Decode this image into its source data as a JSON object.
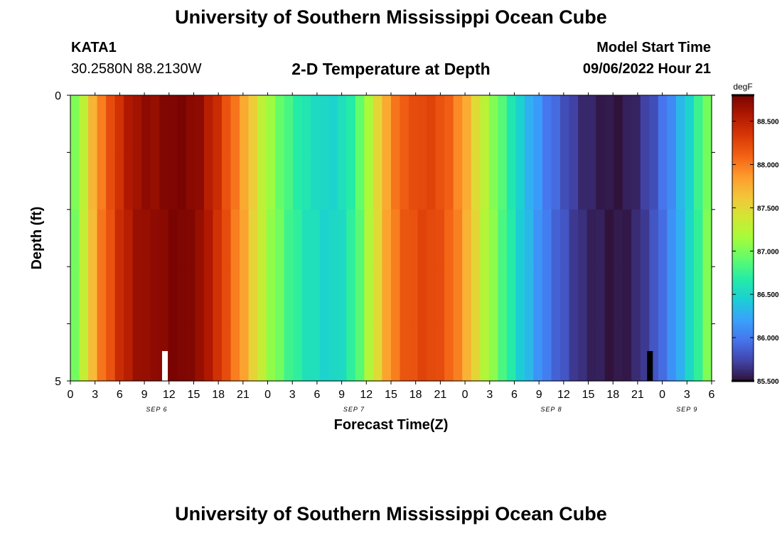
{
  "header": {
    "title": "University of Southern Mississippi Ocean Cube",
    "station_id": "KATA1",
    "station_coords": "30.2580N  88.2130W",
    "chart_title": "2-D Temperature at Depth",
    "model_start_label": "Model Start Time",
    "model_start_value": "09/06/2022 Hour 21"
  },
  "footer": {
    "title": "University of Southern Mississippi Ocean Cube"
  },
  "chart_data": {
    "type": "heatmap",
    "xlabel": "Forecast Time(Z)",
    "ylabel": "Depth (ft)",
    "x_tick_labels": [
      "0",
      "3",
      "6",
      "9",
      "12",
      "15",
      "18",
      "21",
      "0",
      "3",
      "6",
      "9",
      "12",
      "15",
      "18",
      "21",
      "0",
      "3",
      "6",
      "9",
      "12",
      "15",
      "18",
      "21",
      "0",
      "3",
      "6"
    ],
    "day_labels": [
      {
        "label": "SEP 6",
        "tick_index": 3.5
      },
      {
        "label": "SEP 7",
        "tick_index": 11.5
      },
      {
        "label": "SEP 8",
        "tick_index": 19.5
      },
      {
        "label": "SEP 9",
        "tick_index": 25
      }
    ],
    "x_range_hours": [
      0,
      78
    ],
    "y_tick_labels": [
      "0",
      "5"
    ],
    "y_range": [
      0,
      5
    ],
    "depth_bands": 5,
    "colorbar": {
      "unit": "degF",
      "range": [
        85.5,
        88.8
      ],
      "tick_labels": [
        "85.500",
        "86.000",
        "86.500",
        "87.000",
        "87.500",
        "88.000",
        "88.500"
      ],
      "tick_values": [
        85.5,
        86.0,
        86.5,
        87.0,
        87.5,
        88.0,
        88.5
      ],
      "colormap": [
        "#30123b",
        "#4145ab",
        "#4675ed",
        "#39a2fc",
        "#1bcfd4",
        "#24eca6",
        "#61fc6c",
        "#a4fc3b",
        "#d1e834",
        "#f3c63a",
        "#fe9b2d",
        "#f36315",
        "#d93806",
        "#b11901",
        "#7a0402"
      ]
    },
    "time_series_degF": [
      87.0,
      87.3,
      87.7,
      88.0,
      88.2,
      88.4,
      88.55,
      88.65,
      88.7,
      88.7,
      88.75,
      88.8,
      88.8,
      88.75,
      88.7,
      88.55,
      88.4,
      88.2,
      88.0,
      87.8,
      87.55,
      87.3,
      87.1,
      86.95,
      86.8,
      86.7,
      86.6,
      86.55,
      86.5,
      86.5,
      86.55,
      86.7,
      86.9,
      87.2,
      87.5,
      87.8,
      88.0,
      88.15,
      88.2,
      88.25,
      88.25,
      88.2,
      88.1,
      87.95,
      87.75,
      87.5,
      87.25,
      87.05,
      86.85,
      86.65,
      86.45,
      86.3,
      86.15,
      86.0,
      85.9,
      85.8,
      85.7,
      85.62,
      85.58,
      85.55,
      85.52,
      85.52,
      85.55,
      85.6,
      85.7,
      85.8,
      85.95,
      86.1,
      86.3,
      86.5,
      86.75,
      87.0
    ],
    "markers": [
      {
        "name": "white",
        "hour": 11.5,
        "color": "#ffffff"
      },
      {
        "name": "black",
        "hour": 70.5,
        "color": "#000000"
      }
    ]
  }
}
